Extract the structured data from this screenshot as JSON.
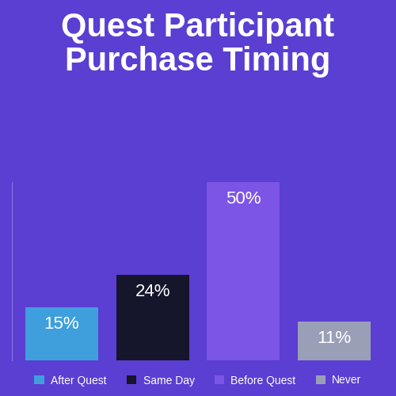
{
  "chart_data": {
    "type": "bar",
    "title": "Quest Participant Purchase Timing",
    "categories": [
      "After Quest",
      "Same Day",
      "Before Quest",
      "Never"
    ],
    "values": [
      15,
      24,
      50,
      11
    ],
    "value_labels": [
      "15%",
      "24%",
      "50%",
      "11%"
    ],
    "colors": [
      "#3f9fdc",
      "#15152b",
      "#7c55e6",
      "#9a9fb8"
    ],
    "ylim": [
      0,
      50
    ],
    "data_labels": true,
    "tick_labels": false,
    "legend": "lower center",
    "grid": false
  }
}
